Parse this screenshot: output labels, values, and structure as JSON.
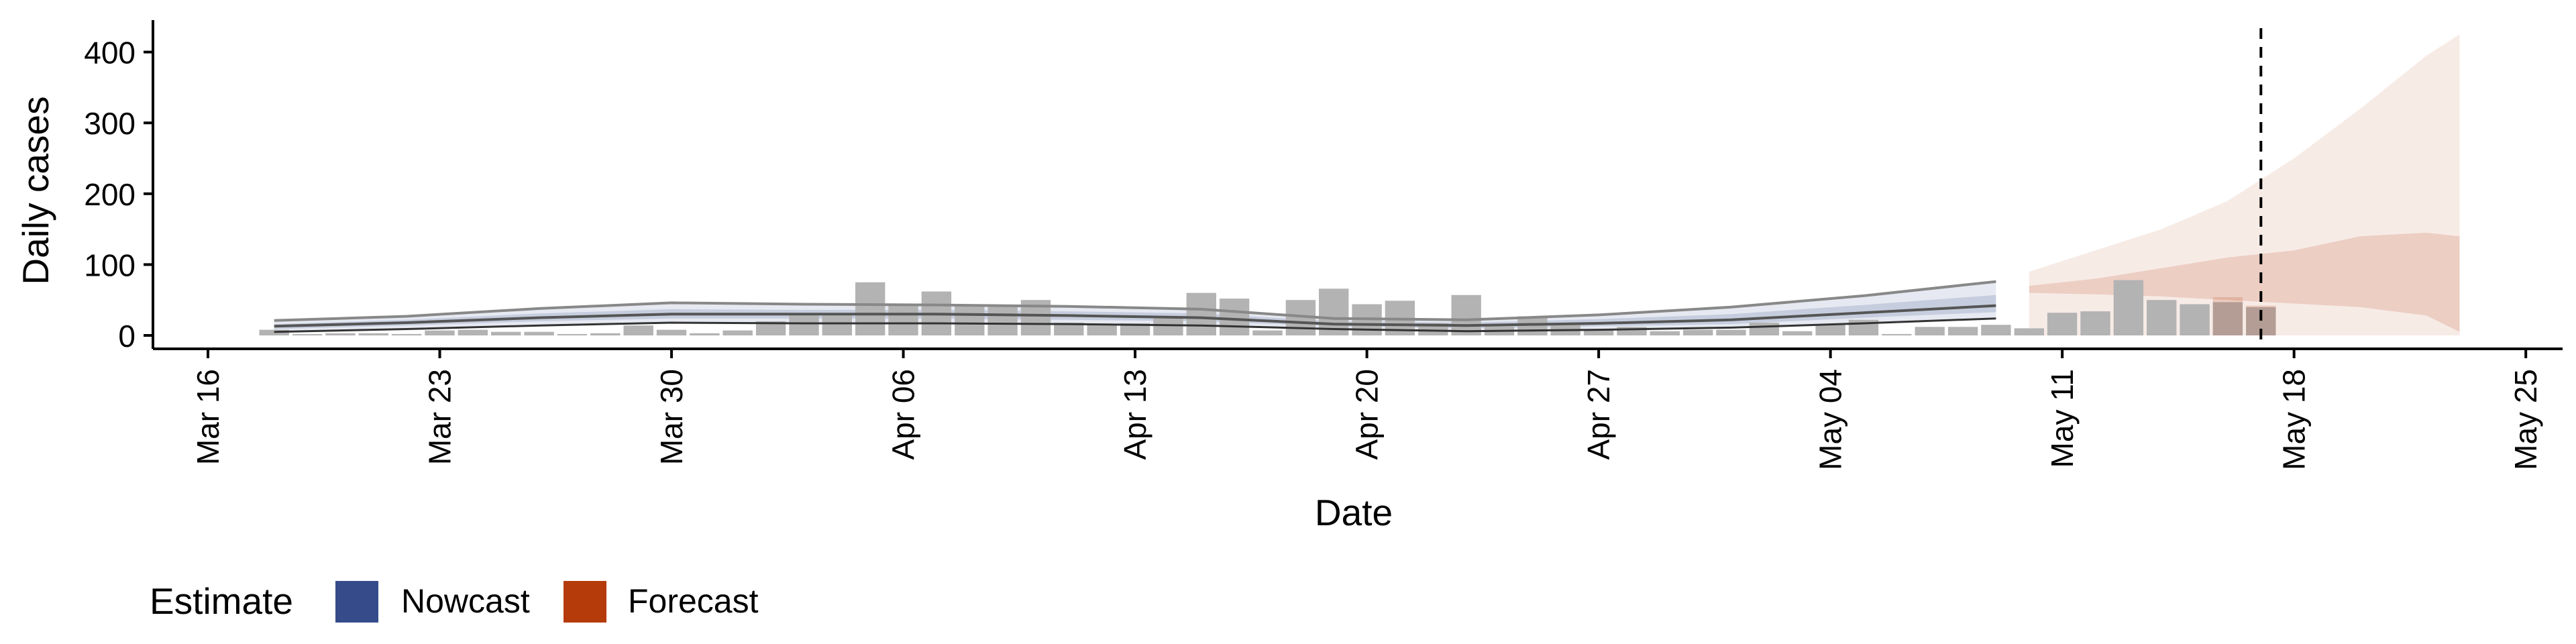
{
  "chart_data": {
    "type": "bar",
    "xlabel": "Date",
    "ylabel": "Daily cases",
    "x_ticks": [
      "Mar 16",
      "Mar 23",
      "Mar 30",
      "Apr 06",
      "Apr 13",
      "Apr 20",
      "Apr 27",
      "May 04",
      "May 11",
      "May 18",
      "May 25"
    ],
    "y_ticks": [
      0,
      100,
      200,
      300,
      400
    ],
    "ylim": [
      -20,
      445
    ],
    "xlim": [
      "2020-03-13",
      "2020-05-26"
    ],
    "grid": false,
    "legend": {
      "title": "Estimate",
      "position": "bottom-left",
      "entries": [
        {
          "label": "Nowcast",
          "color": "#354b8a"
        },
        {
          "label": "Forecast",
          "color": "#b53b0b"
        }
      ]
    },
    "colors": {
      "bars": "#b3b3b3",
      "nowcast": "#354b8a",
      "forecast": "#b53b0b",
      "median_line": "#555555"
    },
    "reference_line": {
      "date": "2020-05-17",
      "style": "dashed"
    },
    "bars": {
      "dates": [
        "2020-03-18",
        "2020-03-19",
        "2020-03-20",
        "2020-03-21",
        "2020-03-22",
        "2020-03-23",
        "2020-03-24",
        "2020-03-25",
        "2020-03-26",
        "2020-03-27",
        "2020-03-28",
        "2020-03-29",
        "2020-03-30",
        "2020-03-31",
        "2020-04-01",
        "2020-04-02",
        "2020-04-03",
        "2020-04-04",
        "2020-04-05",
        "2020-04-06",
        "2020-04-07",
        "2020-04-08",
        "2020-04-09",
        "2020-04-10",
        "2020-04-11",
        "2020-04-12",
        "2020-04-13",
        "2020-04-14",
        "2020-04-15",
        "2020-04-16",
        "2020-04-17",
        "2020-04-18",
        "2020-04-19",
        "2020-04-20",
        "2020-04-21",
        "2020-04-22",
        "2020-04-23",
        "2020-04-24",
        "2020-04-25",
        "2020-04-26",
        "2020-04-27",
        "2020-04-28",
        "2020-04-29",
        "2020-04-30",
        "2020-05-01",
        "2020-05-02",
        "2020-05-03",
        "2020-05-04",
        "2020-05-05",
        "2020-05-06",
        "2020-05-07",
        "2020-05-08",
        "2020-05-09",
        "2020-05-10",
        "2020-05-11",
        "2020-05-12",
        "2020-05-13",
        "2020-05-14",
        "2020-05-15",
        "2020-05-16",
        "2020-05-17"
      ],
      "values": [
        8,
        2,
        3,
        3,
        2,
        7,
        8,
        5,
        5,
        2,
        3,
        14,
        8,
        3,
        7,
        20,
        28,
        28,
        75,
        45,
        62,
        42,
        42,
        50,
        18,
        15,
        17,
        24,
        60,
        52,
        7,
        50,
        66,
        44,
        49,
        17,
        57,
        13,
        27,
        16,
        8,
        12,
        6,
        8,
        8,
        18,
        6,
        16,
        22,
        2,
        12,
        12,
        15,
        10,
        32,
        34,
        78,
        50,
        44,
        47,
        40
      ],
      "values_2": [
        null,
        null,
        null,
        null,
        null,
        null,
        null,
        null,
        null,
        null,
        null,
        null,
        null,
        null,
        null,
        null,
        null,
        null,
        null,
        null,
        null,
        null,
        null,
        null,
        null,
        null,
        null,
        null,
        null,
        null,
        null,
        null,
        null,
        null,
        null,
        null,
        null,
        null,
        null,
        null,
        null,
        null,
        null,
        null,
        null,
        null,
        null,
        null,
        null,
        null,
        null,
        null,
        null,
        null,
        null,
        null,
        null,
        null,
        null,
        54,
        42
      ]
    },
    "series": [
      {
        "name": "Nowcast",
        "estimate_type": "estimate based on partial data",
        "dates": [
          "2020-03-18",
          "2020-03-22",
          "2020-03-26",
          "2020-03-30",
          "2020-04-03",
          "2020-04-07",
          "2020-04-11",
          "2020-04-15",
          "2020-04-19",
          "2020-04-23",
          "2020-04-27",
          "2020-05-01",
          "2020-05-05",
          "2020-05-09"
        ],
        "median": [
          13,
          18,
          25,
          30,
          30,
          30,
          28,
          25,
          16,
          14,
          17,
          22,
          32,
          42
        ],
        "lower_90": [
          5,
          9,
          14,
          18,
          17,
          17,
          16,
          14,
          9,
          6,
          8,
          11,
          17,
          24
        ],
        "upper_90": [
          21,
          27,
          38,
          46,
          44,
          43,
          41,
          37,
          24,
          22,
          29,
          40,
          56,
          76
        ],
        "lower_50": [
          9,
          14,
          20,
          24,
          24,
          24,
          22,
          20,
          13,
          10,
          13,
          16,
          25,
          33
        ],
        "upper_50": [
          16,
          22,
          31,
          37,
          36,
          36,
          34,
          31,
          20,
          18,
          23,
          30,
          43,
          57
        ]
      },
      {
        "name": "Forecast",
        "estimate_type": "forecast",
        "dates": [
          "2020-05-10",
          "2020-05-12",
          "2020-05-14",
          "2020-05-16",
          "2020-05-18",
          "2020-05-20",
          "2020-05-22",
          "2020-05-23"
        ],
        "lower_90": [
          0,
          0,
          0,
          0,
          0,
          0,
          0,
          0
        ],
        "upper_90": [
          90,
          120,
          150,
          190,
          250,
          320,
          395,
          425
        ],
        "lower_50": [
          60,
          58,
          55,
          50,
          45,
          40,
          28,
          5
        ],
        "upper_50": [
          70,
          80,
          95,
          110,
          120,
          140,
          145,
          140
        ]
      }
    ]
  }
}
